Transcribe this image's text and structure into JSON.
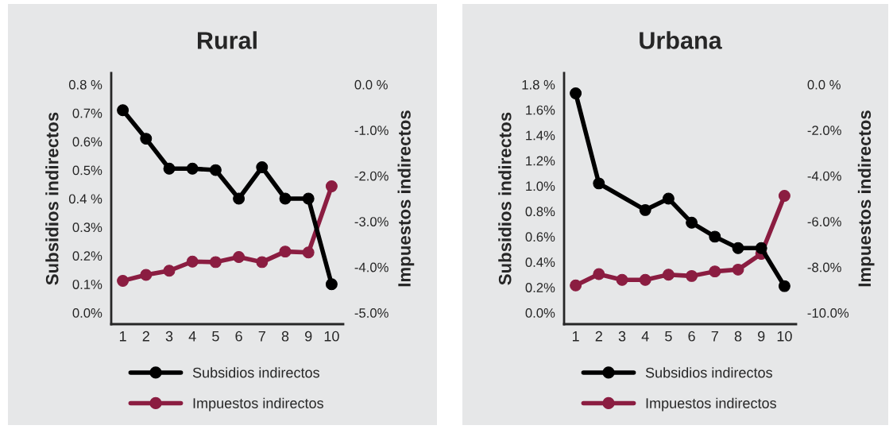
{
  "chart_data": [
    {
      "type": "line",
      "title": "Rural",
      "ylabel": "Subsidios indirectos",
      "y2label": "Impuestos indirectos",
      "categories": [
        "1",
        "2",
        "3",
        "4",
        "5",
        "6",
        "7",
        "8",
        "9",
        "10"
      ],
      "series": [
        {
          "name": "Subsidios indirectos",
          "color": "#000000",
          "values": [
            0.71,
            0.61,
            0.505,
            0.505,
            0.5,
            0.4,
            0.51,
            0.4,
            0.4,
            0.1
          ]
        },
        {
          "name": "Impuestos indirectos",
          "color": "#8b1d41",
          "axis": "y2",
          "values": [
            -4.3,
            -4.17,
            -4.08,
            -3.88,
            -3.89,
            -3.78,
            -3.89,
            -3.66,
            -3.68,
            -2.23
          ]
        }
      ],
      "ylim": [
        -0.04,
        0.84
      ],
      "yticks": [
        {
          "value": 0,
          "label": "0.0%"
        },
        {
          "value": 0.1,
          "label": "0.1%"
        },
        {
          "value": 0.2,
          "label": "0.2%"
        },
        {
          "value": 0.3,
          "label": "0.3%"
        },
        {
          "value": 0.4,
          "label": "0.4 %"
        },
        {
          "value": 0.5,
          "label": "0.5%"
        },
        {
          "value": 0.6,
          "label": "0.6%"
        },
        {
          "value": 0.7,
          "label": "0.7%"
        },
        {
          "value": 0.8,
          "label": "0.8 %"
        }
      ],
      "y2lim": [
        -5.25,
        0.25
      ],
      "y2ticks": [
        {
          "value": -5,
          "label": "-5.0%"
        },
        {
          "value": -4,
          "label": "-4.0%"
        },
        {
          "value": -3,
          "label": "-3.0%"
        },
        {
          "value": -2,
          "label": "-2.0%"
        },
        {
          "value": -1,
          "label": "-1.0%"
        },
        {
          "value": 0,
          "label": "0.0 %"
        }
      ],
      "marker": "circle",
      "line_style": "solid",
      "grid": false,
      "legend": "bottom"
    },
    {
      "type": "line",
      "title": "Urbana",
      "ylabel": "Subsidios indirectos",
      "y2label": "Impuestos indirectos",
      "categories": [
        "1",
        "2",
        "3",
        "4",
        "5",
        "6",
        "7",
        "8",
        "9",
        "10"
      ],
      "series": [
        {
          "name": "Subsidios indirectos",
          "color": "#000000",
          "values": [
            1.73,
            1.02,
            null,
            0.81,
            0.9,
            0.71,
            0.6,
            0.51,
            0.51,
            0.21
          ]
        },
        {
          "name": "Impuestos indirectos",
          "color": "#8b1d41",
          "axis": "y2",
          "values": [
            -8.8,
            -8.31,
            -8.56,
            -8.56,
            -8.33,
            -8.39,
            -8.19,
            -8.11,
            -7.42,
            -4.88
          ]
        }
      ],
      "ylim": [
        -0.09,
        1.89
      ],
      "yticks": [
        {
          "value": 0,
          "label": "0.0%"
        },
        {
          "value": 0.2,
          "label": "0.2%"
        },
        {
          "value": 0.4,
          "label": "0.4%"
        },
        {
          "value": 0.6,
          "label": "0.6%"
        },
        {
          "value": 0.8,
          "label": "0.8%"
        },
        {
          "value": 1.0,
          "label": "1.0%"
        },
        {
          "value": 1.2,
          "label": "1.2%"
        },
        {
          "value": 1.4,
          "label": "1.4%"
        },
        {
          "value": 1.6,
          "label": "1.6%"
        },
        {
          "value": 1.8,
          "label": "1.8 %"
        }
      ],
      "y2lim": [
        -10.5,
        0.5
      ],
      "y2ticks": [
        {
          "value": -10,
          "label": "-10.0%"
        },
        {
          "value": -8,
          "label": "-8.0%"
        },
        {
          "value": -6,
          "label": "-6.0%"
        },
        {
          "value": -4,
          "label": "-4.0%"
        },
        {
          "value": -2,
          "label": "-2.0%"
        },
        {
          "value": 0,
          "label": "0.0 %"
        }
      ],
      "marker": "circle",
      "line_style": "solid",
      "grid": false,
      "legend": "bottom"
    }
  ]
}
